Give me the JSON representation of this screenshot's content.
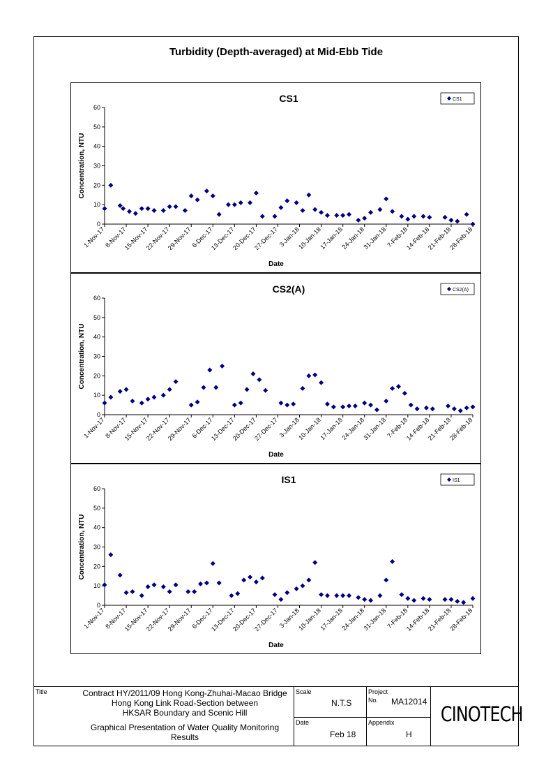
{
  "page_title": "Turbidity (Depth-averaged) at Mid-Ebb Tide",
  "title_block": {
    "title_label": "Title",
    "title_lines": [
      "Contract HY/2011/09 Hong Kong-Zhuhai-Macao Bridge",
      "Hong Kong Link Road-Section between",
      "HKSAR Boundary and Scenic Hill"
    ],
    "subtitle_lines": [
      "Graphical Presentation of Water Quality Monitoring",
      "Results"
    ],
    "scale_label": "Scale",
    "scale_value": "N.T.S",
    "date_label": "Date",
    "date_value": "Feb 18",
    "project_label": "Project",
    "project_no_label": "No.",
    "project_no": "MA12014",
    "appendix_label": "Appendix",
    "appendix_value": "H",
    "logo_text": "CINOTECH"
  },
  "chart_data": [
    {
      "type": "scatter",
      "title": "CS1",
      "xlabel": "Date",
      "ylabel": "Concentration, NTU",
      "ylim": [
        0,
        60
      ],
      "yticks": [
        0,
        10,
        20,
        30,
        40,
        50,
        60
      ],
      "xlim": [
        "2017-11-01",
        "2018-02-28"
      ],
      "xtick_labels": [
        "1-Nov-17",
        "8-Nov-17",
        "15-Nov-17",
        "22-Nov-17",
        "29-Nov-17",
        "6-Dec-17",
        "13-Dec-17",
        "20-Dec-17",
        "27-Dec-17",
        "3-Jan-18",
        "10-Jan-18",
        "17-Jan-18",
        "24-Jan-18",
        "31-Jan-18",
        "7-Feb-18",
        "14-Feb-18",
        "21-Feb-18",
        "28-Feb-18"
      ],
      "legend": "top-right",
      "marker": "diamond",
      "color": "#000080",
      "series": [
        {
          "name": "CS1",
          "x": [
            "2017-11-01",
            "2017-11-03",
            "2017-11-06",
            "2017-11-07",
            "2017-11-09",
            "2017-11-11",
            "2017-11-13",
            "2017-11-15",
            "2017-11-17",
            "2017-11-20",
            "2017-11-22",
            "2017-11-24",
            "2017-11-27",
            "2017-11-29",
            "2017-12-01",
            "2017-12-04",
            "2017-12-06",
            "2017-12-08",
            "2017-12-11",
            "2017-12-13",
            "2017-12-15",
            "2017-12-18",
            "2017-12-20",
            "2017-12-22",
            "2017-12-26",
            "2017-12-28",
            "2017-12-30",
            "2018-01-02",
            "2018-01-04",
            "2018-01-06",
            "2018-01-08",
            "2018-01-10",
            "2018-01-12",
            "2018-01-15",
            "2018-01-17",
            "2018-01-19",
            "2018-01-22",
            "2018-01-24",
            "2018-01-26",
            "2018-01-29",
            "2018-01-31",
            "2018-02-02",
            "2018-02-05",
            "2018-02-07",
            "2018-02-09",
            "2018-02-12",
            "2018-02-14",
            "2018-02-19",
            "2018-02-21",
            "2018-02-23",
            "2018-02-26",
            "2018-02-28"
          ],
          "y": [
            8,
            20,
            9.5,
            8,
            6.5,
            5.5,
            8,
            8,
            7,
            7,
            9,
            9,
            7,
            14.5,
            12.5,
            17,
            14.5,
            5,
            10,
            10,
            11,
            11,
            16,
            4,
            4,
            8.5,
            12,
            11,
            7,
            15,
            7.5,
            6,
            4.5,
            4.5,
            4.5,
            5,
            2,
            3,
            6,
            7.5,
            13,
            6.5,
            4,
            2.5,
            4,
            4,
            3.5,
            3.5,
            2,
            1.5,
            5,
            0
          ]
        }
      ]
    },
    {
      "type": "scatter",
      "title": "CS2(A)",
      "xlabel": "Date",
      "ylabel": "Concentration, NTU",
      "ylim": [
        0,
        60
      ],
      "yticks": [
        0,
        10,
        20,
        30,
        40,
        50,
        60
      ],
      "xlim": [
        "2017-11-01",
        "2018-02-28"
      ],
      "xtick_labels": [
        "1-Nov-17",
        "8-Nov-17",
        "15-Nov-17",
        "22-Nov-17",
        "29-Nov-17",
        "6-Dec-17",
        "13-Dec-17",
        "20-Dec-17",
        "27-Dec-17",
        "3-Jan-18",
        "10-Jan-18",
        "17-Jan-18",
        "24-Jan-18",
        "31-Jan-18",
        "7-Feb-18",
        "14-Feb-18",
        "21-Feb-18",
        "28-Feb-18"
      ],
      "legend": "top-right",
      "marker": "diamond",
      "color": "#000080",
      "series": [
        {
          "name": "CS2(A)",
          "x": [
            "2017-11-01",
            "2017-11-03",
            "2017-11-06",
            "2017-11-08",
            "2017-11-10",
            "2017-11-13",
            "2017-11-15",
            "2017-11-17",
            "2017-11-20",
            "2017-11-22",
            "2017-11-24",
            "2017-11-29",
            "2017-12-01",
            "2017-12-03",
            "2017-12-05",
            "2017-12-07",
            "2017-12-09",
            "2017-12-13",
            "2017-12-15",
            "2017-12-17",
            "2017-12-19",
            "2017-12-21",
            "2017-12-23",
            "2017-12-28",
            "2017-12-30",
            "2018-01-01",
            "2018-01-04",
            "2018-01-06",
            "2018-01-08",
            "2018-01-10",
            "2018-01-12",
            "2018-01-14",
            "2018-01-17",
            "2018-01-19",
            "2018-01-21",
            "2018-01-24",
            "2018-01-26",
            "2018-01-28",
            "2018-01-31",
            "2018-02-02",
            "2018-02-04",
            "2018-02-06",
            "2018-02-08",
            "2018-02-10",
            "2018-02-13",
            "2018-02-15",
            "2018-02-20",
            "2018-02-22",
            "2018-02-24",
            "2018-02-26",
            "2018-02-28"
          ],
          "y": [
            6,
            9,
            12,
            13,
            7,
            6,
            8,
            9,
            10,
            13,
            17,
            5,
            6.5,
            14,
            23,
            14,
            25,
            5,
            6,
            13,
            21,
            18,
            12.5,
            6,
            5,
            5.5,
            13.5,
            20,
            20.5,
            16.5,
            5.5,
            4,
            4,
            4.5,
            4.5,
            6,
            5,
            2.5,
            7,
            13.5,
            14.5,
            11,
            5,
            3,
            3.5,
            3,
            4.5,
            3,
            2,
            3.5,
            4
          ]
        }
      ]
    },
    {
      "type": "scatter",
      "title": "IS1",
      "xlabel": "Date",
      "ylabel": "Concentration, NTU",
      "ylim": [
        0,
        60
      ],
      "yticks": [
        0,
        10,
        20,
        30,
        40,
        50,
        60
      ],
      "xlim": [
        "2017-11-01",
        "2018-02-28"
      ],
      "xtick_labels": [
        "1-Nov-17",
        "8-Nov-17",
        "15-Nov-17",
        "22-Nov-17",
        "29-Nov-17",
        "6-Dec-17",
        "13-Dec-17",
        "20-Dec-17",
        "27-Dec-17",
        "3-Jan-18",
        "10-Jan-18",
        "17-Jan-18",
        "24-Jan-18",
        "31-Jan-18",
        "7-Feb-18",
        "14-Feb-18",
        "21-Feb-18",
        "28-Feb-18"
      ],
      "legend": "top-right",
      "marker": "diamond",
      "color": "#000080",
      "series": [
        {
          "name": "IS1",
          "x": [
            "2017-11-01",
            "2017-11-03",
            "2017-11-06",
            "2017-11-08",
            "2017-11-10",
            "2017-11-13",
            "2017-11-15",
            "2017-11-17",
            "2017-11-20",
            "2017-11-22",
            "2017-11-24",
            "2017-11-28",
            "2017-11-30",
            "2017-12-02",
            "2017-12-04",
            "2017-12-06",
            "2017-12-08",
            "2017-12-12",
            "2017-12-14",
            "2017-12-16",
            "2017-12-18",
            "2017-12-20",
            "2017-12-22",
            "2017-12-26",
            "2017-12-28",
            "2017-12-30",
            "2018-01-02",
            "2018-01-04",
            "2018-01-06",
            "2018-01-08",
            "2018-01-10",
            "2018-01-12",
            "2018-01-15",
            "2018-01-17",
            "2018-01-19",
            "2018-01-22",
            "2018-01-24",
            "2018-01-26",
            "2018-01-29",
            "2018-01-31",
            "2018-02-02",
            "2018-02-05",
            "2018-02-07",
            "2018-02-09",
            "2018-02-12",
            "2018-02-14",
            "2018-02-19",
            "2018-02-21",
            "2018-02-23",
            "2018-02-25",
            "2018-02-28"
          ],
          "y": [
            10.5,
            26,
            15.5,
            6.5,
            7,
            5,
            9.5,
            10.5,
            9.5,
            7,
            10.5,
            7,
            7,
            11,
            11.5,
            21.5,
            11.5,
            5,
            6,
            13,
            14.5,
            12,
            14,
            5.5,
            3,
            6.5,
            8.5,
            10,
            13,
            22,
            5.5,
            5,
            5,
            5,
            5,
            4,
            3,
            2.5,
            5,
            13,
            22.5,
            5.5,
            3.5,
            2.5,
            3.5,
            3,
            3,
            3,
            2,
            1.5,
            3.5
          ]
        }
      ]
    }
  ]
}
